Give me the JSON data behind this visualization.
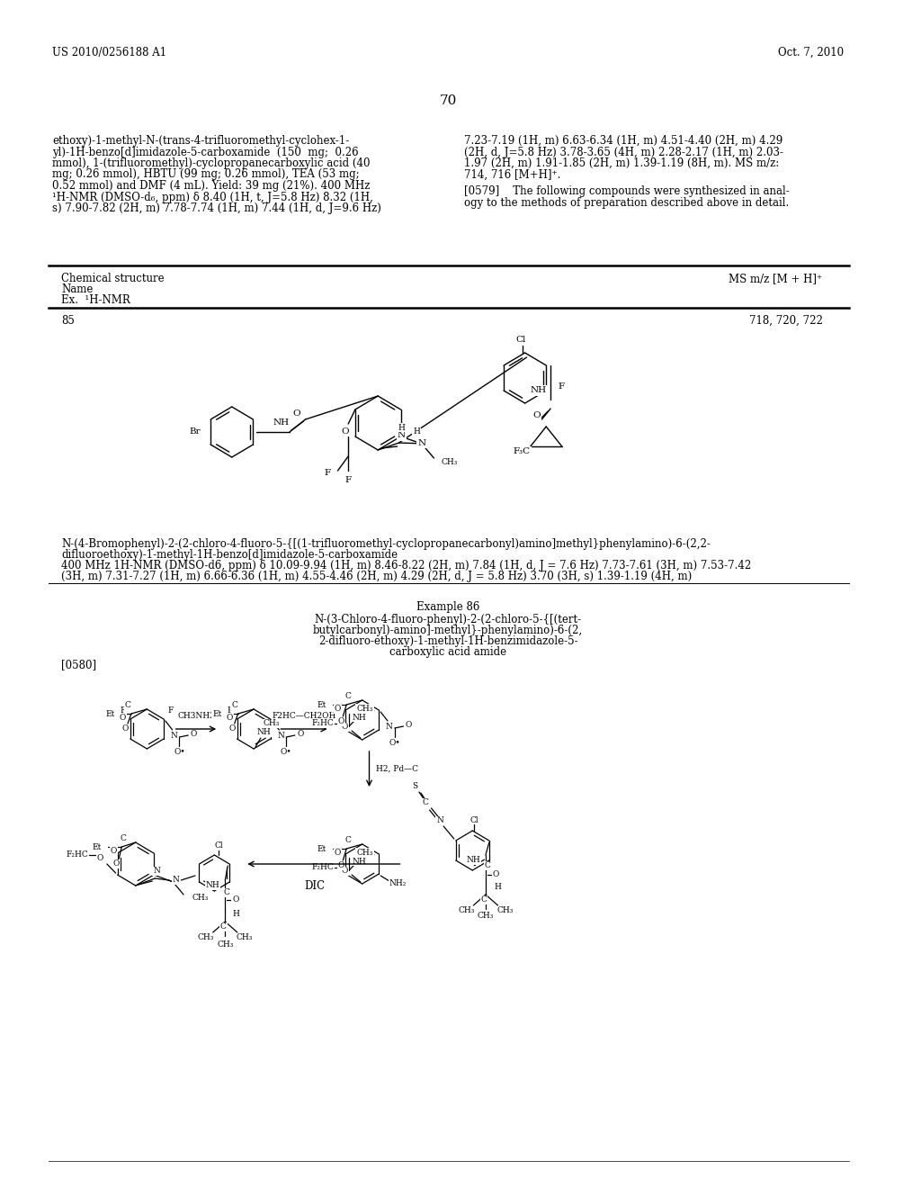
{
  "background_color": "#ffffff",
  "page_header_left": "US 2010/0256188 A1",
  "page_header_right": "Oct. 7, 2010",
  "page_number": "70",
  "text_left_1": "ethoxy)-1-methyl-N-(trans-4-trifluoromethyl-cyclohex-1-",
  "text_left_2": "yl)-1H-benzo[d]imidazole-5-carboxamide  (150  mg;  0.26",
  "text_left_3": "mmol), 1-(trifluoromethyl)-cyclopropanecarboxylic acid (40",
  "text_left_4": "mg; 0.26 mmol), HBTU (99 mg; 0.26 mmol), TEA (53 mg;",
  "text_left_5": "0.52 mmol) and DMF (4 mL). Yield: 39 mg (21%). 400 MHz",
  "text_left_6": "¹H-NMR (DMSO-d₆, ppm) δ 8.40 (1H, t, J=5.8 Hz) 8.32 (1H,",
  "text_left_7": "s) 7.90-7.82 (2H, m) 7.78-7.74 (1H, m) 7.44 (1H, d, J=9.6 Hz)",
  "text_right_1": "7.23-7.19 (1H, m) 6.63-6.34 (1H, m) 4.51-4.40 (2H, m) 4.29",
  "text_right_2": "(2H, d, J=5.8 Hz) 3.78-3.65 (4H, m) 2.28-2.17 (1H, m) 2.03-",
  "text_right_3": "1.97 (2H, m) 1.91-1.85 (2H, m) 1.39-1.19 (8H, m). MS m/z:",
  "text_right_4": "714, 716 [M+H]⁺.",
  "text_0579_1": "[0579]    The following compounds were synthesized in anal-",
  "text_0579_2": "ogy to the methods of preparation described above in detail.",
  "tbl_hdr1": "Chemical structure",
  "tbl_hdr2": "Name",
  "tbl_hdr3": "Ex.  ¹H-NMR",
  "tbl_hdr_ms": "MS m/z [M + H]⁺",
  "ex85_num": "85",
  "ex85_ms": "718, 720, 722",
  "ex85_name1": "N-(4-Bromophenyl)-2-(2-chloro-4-fluoro-5-{[(1-trifluoromethyl-cyclopropanecarbonyl)amino]methyl}phenylamino)-6-(2,2-",
  "ex85_name2": "difluoroethoxy)-1-methyl-1H-benzo[d]imidazole-5-carboxamide",
  "ex85_nmr1": "400 MHz 1H-NMR (DMSO-d6, ppm) δ 10.09-9.94 (1H, m) 8.46-8.22 (2H, m) 7.84 (1H, d, J = 7.6 Hz) 7.73-7.61 (3H, m) 7.53-7.42",
  "ex85_nmr2": "(3H, m) 7.31-7.27 (1H, m) 6.66-6.36 (1H, m) 4.55-4.46 (2H, m) 4.29 (2H, d, J = 5.8 Hz) 3.70 (3H, s) 1.39-1.19 (4H, m)",
  "ex86_title": "Example 86",
  "ex86_name1": "N-(3-Chloro-4-fluoro-phenyl)-2-(2-chloro-5-{[(tert-",
  "ex86_name2": "butylcarbonyl)-amino]-methyl}-phenylamino)-6-(2,",
  "ex86_name3": "2-difluoro-ethoxy)-1-methyl-1H-benzimidazole-5-",
  "ex86_name4": "carboxylic acid amide",
  "para_0580": "[0580]",
  "fs": 8.5,
  "fs_small": 7.5,
  "fs_tiny": 6.5,
  "fs_pg": 11
}
